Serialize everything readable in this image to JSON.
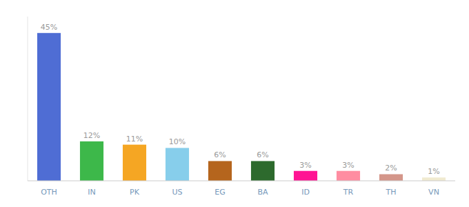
{
  "chart_data": {
    "type": "bar",
    "categories": [
      "OTH",
      "IN",
      "PK",
      "US",
      "EG",
      "BA",
      "ID",
      "TR",
      "TH",
      "VN"
    ],
    "values": [
      45,
      12,
      11,
      10,
      6,
      6,
      3,
      3,
      2,
      1
    ],
    "value_labels": [
      "45%",
      "12%",
      "11%",
      "10%",
      "6%",
      "6%",
      "3%",
      "3%",
      "2%",
      "1%"
    ],
    "colors": [
      "#4f6dd4",
      "#3db84a",
      "#f5a623",
      "#87ceeb",
      "#b5651d",
      "#2d6a2d",
      "#ff1493",
      "#ff8da1",
      "#d4968a",
      "#f0ead0"
    ],
    "ylim": [
      0,
      50
    ],
    "tick_labels": "x",
    "data_labels": true,
    "grid": false
  }
}
